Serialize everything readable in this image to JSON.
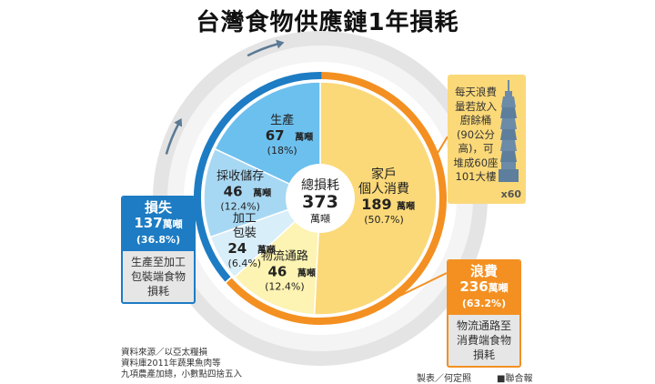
{
  "title": "台灣食物供應鏈1年損耗",
  "chart_data": {
    "type": "pie",
    "total": {
      "label": "總損耗",
      "value": 373,
      "unit": "萬噸"
    },
    "unit": "萬噸",
    "slices": [
      {
        "key": "household",
        "label_lines": [
          "家戶",
          "個人消費"
        ],
        "value": 189,
        "pct": "(50.7%)",
        "color": "#fbd979",
        "group": "waste"
      },
      {
        "key": "logistics",
        "label_lines": [
          "物流通路"
        ],
        "value": 46,
        "pct": "(12.4%)",
        "color": "#fdf3b2",
        "group": "waste"
      },
      {
        "key": "processing",
        "label_lines": [
          "加工",
          "包裝"
        ],
        "value": 24,
        "pct": "(6.4%)",
        "color": "#d8eef9",
        "group": "loss"
      },
      {
        "key": "storage",
        "label_lines": [
          "採收儲存"
        ],
        "value": 46,
        "pct": "(12.4%)",
        "color": "#a7d8f3",
        "group": "loss"
      },
      {
        "key": "production",
        "label_lines": [
          "生產"
        ],
        "value": 67,
        "pct": "(18%)",
        "color": "#6cc0ee",
        "group": "loss"
      }
    ],
    "groups": [
      {
        "key": "loss",
        "name": "損失",
        "value": 137,
        "pct": "(36.8%)",
        "description": "生產至加工包裝端食物損耗",
        "color": "#1d7cc3"
      },
      {
        "key": "waste",
        "name": "浪費",
        "value": 236,
        "pct": "(63.2%)",
        "description": "物流通路至消費端食物損耗",
        "color": "#f39021"
      }
    ]
  },
  "loss_tag": {
    "name": "損失",
    "amount": "137",
    "unit": "萬噸",
    "pct": "(36.8%)",
    "desc": "生產至加工包裝端食物損耗"
  },
  "waste_tag": {
    "name": "浪費",
    "amount": "236",
    "unit": "萬噸",
    "pct": "(63.2%)",
    "desc": "物流通路至消費端食物損耗"
  },
  "tower_note": {
    "text": "每天浪費量若放入廚餘桶(90公分高)，可堆成60座101大樓",
    "multiplier": "x60",
    "icon": "taipei-101-tower-icon"
  },
  "footnote": [
    "資料來源／以亞太糧損",
    "資料庫2011年蔬果魚肉等",
    "九項農產加總，小數點四捨五入"
  ],
  "credit_maker": "製表／何定照",
  "credit_source": "■聯合報",
  "colors": {
    "loss": "#1d7cc3",
    "waste": "#f39021",
    "ring": "#e4e4e4",
    "arrow": "#5b7a94"
  }
}
